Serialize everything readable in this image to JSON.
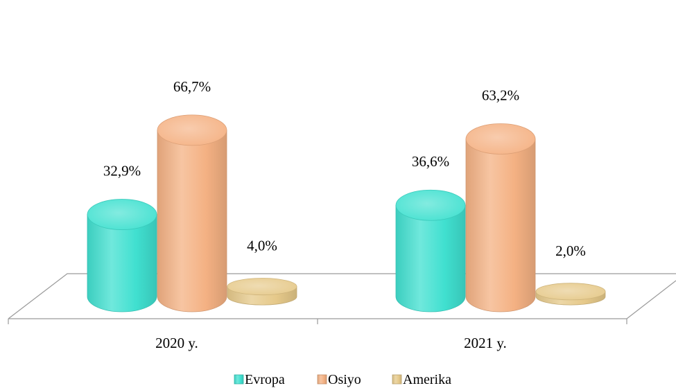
{
  "chart_data": {
    "type": "bar",
    "style": "3d-cylinder",
    "categories": [
      "2020 y.",
      "2021 y."
    ],
    "series": [
      {
        "name": "Evropa",
        "values": [
          32.9,
          36.6
        ],
        "labels": [
          "32,9%",
          "36,6%"
        ],
        "color": "#40E0D0"
      },
      {
        "name": "Osiyo",
        "values": [
          66.7,
          63.2
        ],
        "labels": [
          "66,7%",
          "63,2%"
        ],
        "color": "#F4B183"
      },
      {
        "name": "Amerika",
        "values": [
          4.0,
          2.0
        ],
        "labels": [
          "4,0%",
          "2,0%"
        ],
        "color": "#E6C98A"
      }
    ],
    "ylim": [
      0,
      70
    ],
    "grid": false,
    "legend": "bottom"
  }
}
